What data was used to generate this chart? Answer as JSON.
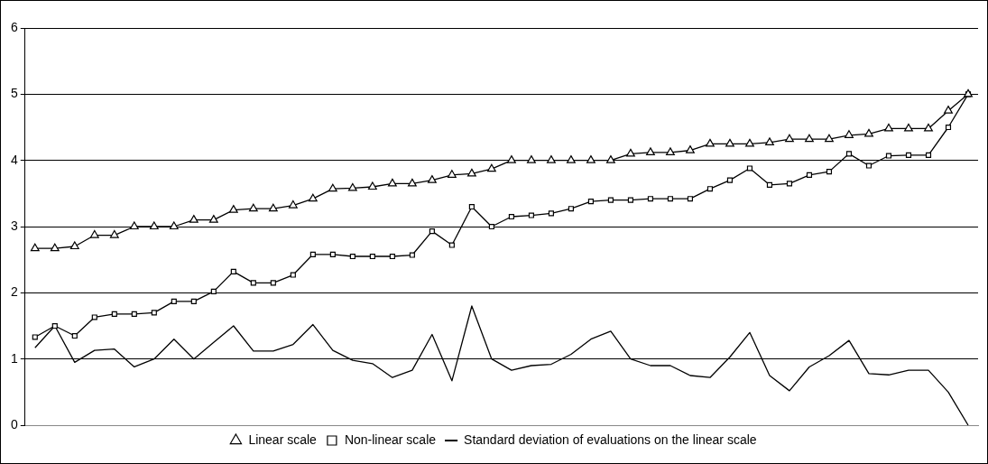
{
  "chart_data": {
    "type": "line",
    "categories": [
      null,
      null,
      null,
      null,
      null,
      null,
      null,
      null,
      null,
      null,
      null,
      null,
      null,
      null,
      null,
      null,
      null,
      null,
      null,
      null,
      null,
      null,
      null,
      null,
      null,
      null,
      null,
      null,
      null,
      null,
      null,
      null,
      null,
      null,
      null,
      null,
      null,
      null,
      null,
      null,
      null,
      null,
      null,
      null,
      null,
      null,
      null,
      null
    ],
    "series": [
      {
        "name": "Linear scale",
        "color": "#000000",
        "marker": "triangle",
        "values": [
          2.67,
          2.67,
          2.7,
          2.87,
          2.87,
          3,
          3,
          3,
          3.1,
          3.1,
          3.25,
          3.27,
          3.27,
          3.32,
          3.42,
          3.57,
          3.58,
          3.6,
          3.65,
          3.65,
          3.7,
          3.78,
          3.8,
          3.87,
          4,
          4,
          4,
          4,
          4,
          4,
          4.1,
          4.12,
          4.12,
          4.15,
          4.25,
          4.25,
          4.25,
          4.27,
          4.32,
          4.32,
          4.32,
          4.38,
          4.4,
          4.48,
          4.48,
          4.48,
          4.75,
          5
        ]
      },
      {
        "name": "Non-linear scale",
        "color": "#000000",
        "marker": "square",
        "values": [
          1.33,
          1.5,
          1.35,
          1.63,
          1.68,
          1.68,
          1.7,
          1.87,
          1.87,
          2.02,
          2.32,
          2.15,
          2.15,
          2.27,
          2.58,
          2.58,
          2.55,
          2.55,
          2.55,
          2.57,
          2.93,
          2.72,
          3.3,
          3,
          3.15,
          3.17,
          3.2,
          3.27,
          3.38,
          3.4,
          3.4,
          3.42,
          3.42,
          3.42,
          3.57,
          3.7,
          3.88,
          3.63,
          3.65,
          3.78,
          3.83,
          4.1,
          3.92,
          4.07,
          4.08,
          4.08,
          4.5,
          5
        ]
      },
      {
        "name": "Standard deviation of evaluations on the linear scale",
        "color": "#000000",
        "marker": "none",
        "values": [
          1.17,
          1.5,
          0.95,
          1.13,
          1.15,
          0.88,
          1,
          1.3,
          1,
          1.25,
          1.5,
          1.12,
          1.12,
          1.22,
          1.52,
          1.13,
          0.98,
          0.93,
          0.72,
          0.83,
          1.37,
          0.67,
          1.8,
          1,
          0.83,
          0.9,
          0.92,
          1.07,
          1.3,
          1.42,
          1,
          0.9,
          0.9,
          0.75,
          0.72,
          1.03,
          1.4,
          0.75,
          0.52,
          0.88,
          1.05,
          1.28,
          0.78,
          0.76,
          0.83,
          0.83,
          0.5,
          0
        ]
      }
    ],
    "ylim": [
      0,
      6
    ],
    "yticks": [
      0,
      1,
      2,
      3,
      4,
      5,
      6
    ],
    "grid": "y",
    "legend": "bottom",
    "tick_labels": "y"
  }
}
